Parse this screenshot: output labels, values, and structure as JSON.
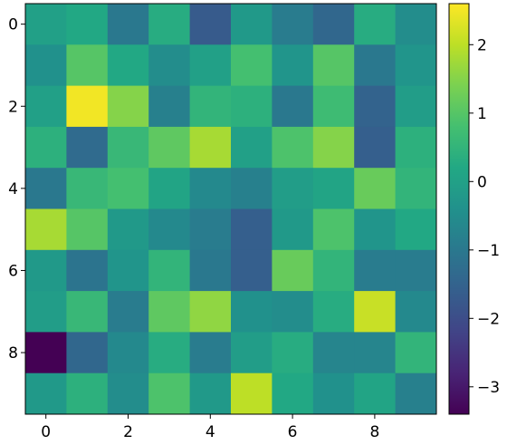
{
  "chart_data": {
    "type": "heatmap",
    "title": "",
    "xlabel": "",
    "ylabel": "",
    "rows": 10,
    "cols": 10,
    "x_ticks": [
      0,
      2,
      4,
      6,
      8
    ],
    "y_ticks": [
      0,
      2,
      4,
      6,
      8
    ],
    "x_range": [
      -0.5,
      9.5
    ],
    "y_range": [
      -0.5,
      9.5
    ],
    "y_axis": "inverted (0 at top)",
    "colormap": "viridis",
    "color_range": [
      -3.4,
      2.6
    ],
    "colorbar_ticks": [
      2,
      1,
      0,
      -1,
      -2,
      -3
    ],
    "colorbar_tick_labels": [
      "2",
      "1",
      "0",
      "−1",
      "−2",
      "−3"
    ],
    "values": [
      [
        0.0,
        0.2,
        -1.0,
        0.3,
        -1.7,
        -0.2,
        -0.9,
        -1.4,
        0.3,
        -0.5
      ],
      [
        -0.4,
        1.0,
        0.2,
        -0.5,
        0.0,
        0.8,
        -0.3,
        1.0,
        -1.0,
        -0.3
      ],
      [
        0.0,
        2.5,
        1.5,
        -0.8,
        0.5,
        0.4,
        -1.0,
        0.7,
        -1.5,
        -0.1
      ],
      [
        0.4,
        -1.3,
        0.6,
        1.1,
        1.8,
        0.0,
        0.9,
        1.5,
        -1.6,
        0.4
      ],
      [
        -1.0,
        0.6,
        0.8,
        0.1,
        -0.6,
        -0.8,
        -0.1,
        0.1,
        1.2,
        0.5
      ],
      [
        1.8,
        1.0,
        -0.2,
        -0.6,
        -0.9,
        -1.6,
        -0.2,
        0.9,
        -0.3,
        0.2
      ],
      [
        -0.2,
        -1.1,
        -0.3,
        0.5,
        -1.0,
        -1.6,
        1.2,
        0.5,
        -0.9,
        -0.9
      ],
      [
        -0.1,
        0.6,
        -0.9,
        1.1,
        1.6,
        -0.4,
        -0.5,
        0.3,
        2.1,
        -0.6
      ],
      [
        -3.4,
        -1.4,
        -0.6,
        0.3,
        -0.9,
        -0.1,
        0.3,
        -0.7,
        -0.7,
        0.5
      ],
      [
        -0.2,
        0.4,
        -0.5,
        0.9,
        -0.2,
        2.0,
        0.2,
        -0.4,
        0.1,
        -0.8
      ]
    ]
  }
}
